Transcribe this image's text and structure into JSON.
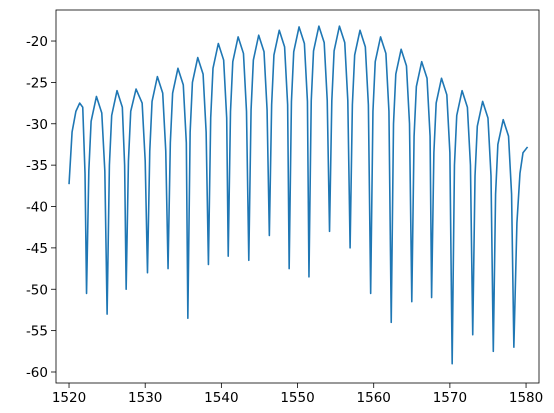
{
  "chart_data": {
    "type": "line",
    "color": "#1f77b4",
    "x": [
      1520.0,
      1520.4,
      1520.9,
      1521.4,
      1521.8,
      1522.1,
      1522.3,
      1522.6,
      1522.9,
      1523.6,
      1524.3,
      1524.7,
      1525.0,
      1525.3,
      1525.6,
      1526.3,
      1527.0,
      1527.3,
      1527.5,
      1527.8,
      1528.1,
      1528.8,
      1529.6,
      1530.0,
      1530.3,
      1530.6,
      1530.9,
      1531.6,
      1532.3,
      1532.7,
      1533.0,
      1533.3,
      1533.6,
      1534.3,
      1535.0,
      1535.4,
      1535.6,
      1535.9,
      1536.2,
      1536.9,
      1537.6,
      1538.0,
      1538.3,
      1538.6,
      1538.9,
      1539.6,
      1540.3,
      1540.7,
      1540.9,
      1541.2,
      1541.5,
      1542.2,
      1542.9,
      1543.3,
      1543.6,
      1543.9,
      1544.2,
      1544.9,
      1545.6,
      1546.0,
      1546.3,
      1546.6,
      1546.9,
      1547.6,
      1548.3,
      1548.7,
      1548.9,
      1549.2,
      1549.5,
      1550.2,
      1550.9,
      1551.3,
      1551.5,
      1551.8,
      1552.1,
      1552.8,
      1553.5,
      1553.9,
      1554.2,
      1554.5,
      1554.8,
      1555.5,
      1556.2,
      1556.6,
      1556.9,
      1557.2,
      1557.5,
      1558.2,
      1558.9,
      1559.3,
      1559.6,
      1559.9,
      1560.2,
      1560.9,
      1561.6,
      1562.0,
      1562.3,
      1562.6,
      1562.9,
      1563.6,
      1564.3,
      1564.7,
      1565.0,
      1565.3,
      1565.6,
      1566.3,
      1567.0,
      1567.4,
      1567.6,
      1567.9,
      1568.2,
      1568.9,
      1569.6,
      1570.0,
      1570.3,
      1570.6,
      1570.9,
      1571.6,
      1572.3,
      1572.7,
      1573.0,
      1573.3,
      1573.6,
      1574.3,
      1575.0,
      1575.4,
      1575.7,
      1576.0,
      1576.3,
      1577.0,
      1577.7,
      1578.1,
      1578.4,
      1578.8,
      1579.2,
      1579.6,
      1580.2
    ],
    "values": [
      -37.3,
      -31,
      -28.5,
      -27.5,
      -28,
      -36,
      -50.5,
      -35.7,
      -29.7,
      -26.7,
      -28.7,
      -35.7,
      -53,
      -35,
      -29,
      -26,
      -28,
      -35,
      -50,
      -34.5,
      -28.5,
      -25.8,
      -27.5,
      -34.5,
      -48,
      -33.3,
      -27.3,
      -24.3,
      -26.3,
      -33.3,
      -47.5,
      -32.3,
      -26.3,
      -23.3,
      -25.3,
      -32.3,
      -53.5,
      -31,
      -25,
      -22,
      -24,
      -31,
      -47,
      -29.3,
      -23.3,
      -20.3,
      -22.3,
      -29.3,
      -46,
      -28.5,
      -22.5,
      -19.5,
      -21.5,
      -28.5,
      -46.5,
      -28.3,
      -22.3,
      -19.3,
      -21.3,
      -28.3,
      -43.5,
      -27.7,
      -21.7,
      -18.7,
      -20.7,
      -27.7,
      -47.5,
      -27.3,
      -21.3,
      -18.3,
      -20.3,
      -27.3,
      -48.5,
      -27.2,
      -21.2,
      -18.2,
      -20.2,
      -27.2,
      -43,
      -27.2,
      -21.2,
      -18.2,
      -20.2,
      -27.2,
      -45,
      -27.7,
      -21.7,
      -18.7,
      -20.7,
      -27.7,
      -50.5,
      -28.5,
      -22.5,
      -19.5,
      -21.5,
      -28.5,
      -54,
      -30,
      -24,
      -21,
      -23,
      -30,
      -51.5,
      -31.5,
      -25.5,
      -22.5,
      -24.5,
      -31.5,
      -51,
      -33.5,
      -27.5,
      -24.5,
      -26.5,
      -33.5,
      -59,
      -35,
      -29,
      -26,
      -28,
      -35,
      -55.5,
      -36.3,
      -30.3,
      -27.3,
      -29.3,
      -36.3,
      -57.5,
      -38.5,
      -32.5,
      -29.5,
      -31.5,
      -38.5,
      -57,
      -42,
      -36,
      -33.5,
      -32.8
    ],
    "xlim": [
      1518.29,
      1581.7
    ],
    "ylim": [
      -61.33,
      -16.25
    ],
    "xticks": [
      1520,
      1530,
      1540,
      1550,
      1560,
      1570,
      1580
    ],
    "yticks": [
      -60,
      -55,
      -50,
      -45,
      -40,
      -35,
      -30,
      -25,
      -20
    ]
  }
}
